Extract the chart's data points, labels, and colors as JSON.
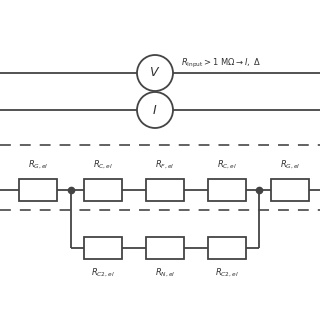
{
  "background_color": "#ffffff",
  "line_color": "#444444",
  "dashed_line_color": "#555555",
  "text_color": "#333333",
  "fig_width": 3.2,
  "fig_height": 3.2,
  "dpi": 100,
  "annotation": "$R_{\\mathrm{Input}} > 1\\ \\mathrm{M}\\Omega \\rightarrow I,\\ \\Delta$",
  "top_labels": [
    "$R_{G,el}$",
    "$R_{C,el}$",
    "$R_{F,el}$",
    "$R_{C,el}$",
    "$R_{G,el}$"
  ],
  "bottom_labels": [
    "$R_{C2,el}$",
    "$R_{N,el}$",
    "$R_{C2,el}$"
  ],
  "V_label": "$V$",
  "I_label": "$I$"
}
